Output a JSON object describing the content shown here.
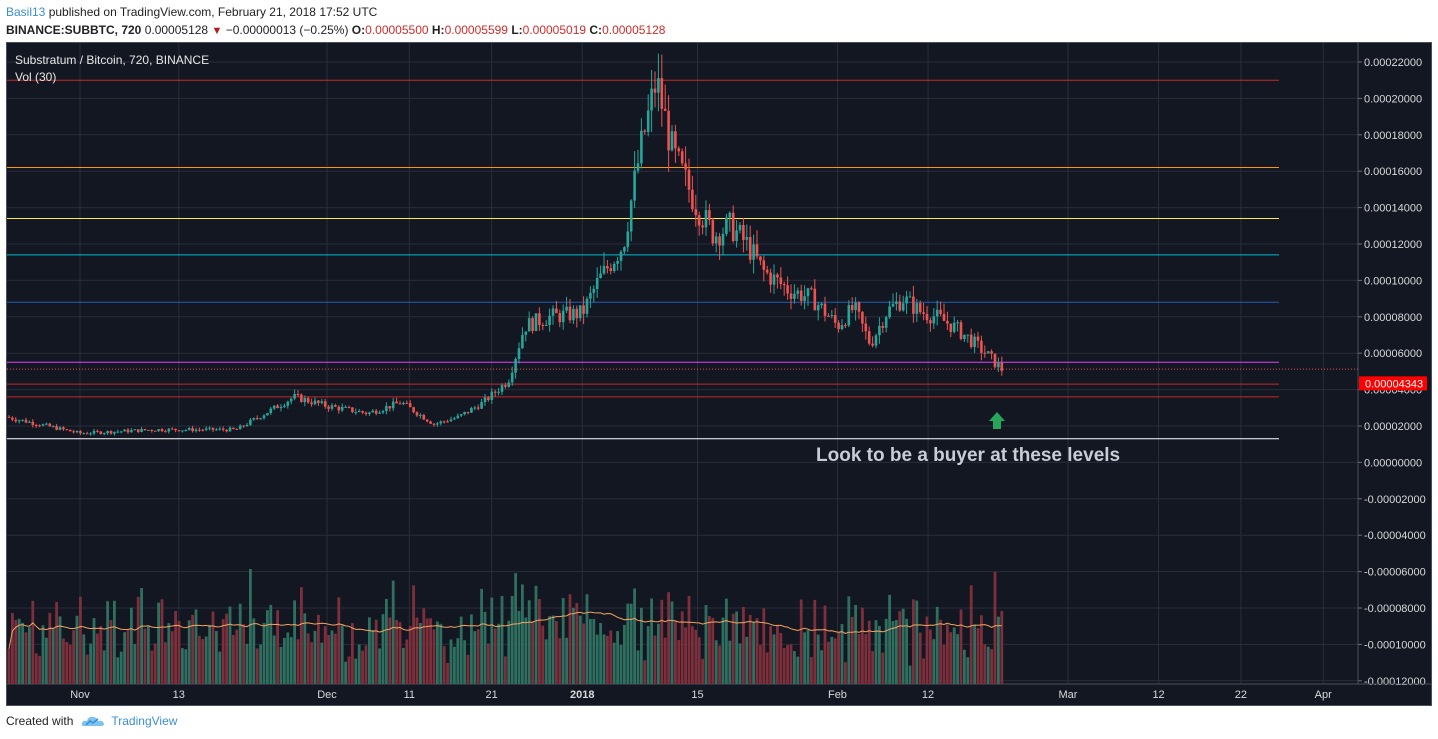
{
  "header": {
    "author": "Basil13",
    "published_text": "published on TradingView.com, February 21, 2018 17:52 UTC",
    "symbol": "BINANCE:SUBBTC, 720",
    "last": "0.00005128",
    "change": "−0.00000013 (−0.25%)",
    "o_label": "O:",
    "o_value": "0.00005500",
    "h_label": "H:",
    "h_value": "0.00005599",
    "l_label": "L:",
    "l_value": "0.00005019",
    "c_label": "C:",
    "c_value": "0.00005128"
  },
  "legend": {
    "title": "Substratum / Bitcoin, 720, BINANCE",
    "volume": "Vol (30)"
  },
  "footer": {
    "created_with": "Created with",
    "brand": "TradingView"
  },
  "colors": {
    "background": "#131722",
    "grid": "#2a2e39",
    "up": "#26a69a",
    "down": "#ef5350",
    "vol_up": "#2e6f5f",
    "vol_down": "#7d2f3b",
    "vol_ma": "#f4a460",
    "text_axis": "#d9d9d9",
    "price_tag": "#ff0000",
    "annotation_arrow": "#26a65b"
  },
  "chart_data": {
    "type": "candlestick",
    "title": "Substratum / Bitcoin, 720, BINANCE",
    "ylim": [
      -0.00013,
      0.00023
    ],
    "y_ticks": [
      "0.00022000",
      "0.00020000",
      "0.00018000",
      "0.00016000",
      "0.00014000",
      "0.00012000",
      "0.00010000",
      "0.00008000",
      "0.00006000",
      "0.00004000",
      "0.00002000",
      "0.00000000",
      "-0.00002000",
      "-0.00004000",
      "-0.00006000",
      "-0.00008000",
      "-0.00010000",
      "-0.00012000"
    ],
    "y_tick_values": [
      0.00022,
      0.0002,
      0.00018,
      0.00016,
      0.00014,
      0.00012,
      0.0001,
      8e-05,
      6e-05,
      4e-05,
      2e-05,
      0,
      -2e-05,
      -4e-05,
      -6e-05,
      -8e-05,
      -0.0001,
      -0.00012
    ],
    "x_ticks": [
      "Nov",
      "13",
      "Dec",
      "11",
      "21",
      "2018",
      "15",
      "Feb",
      "12",
      "Mar",
      "12",
      "22",
      "Apr"
    ],
    "x_tick_dates": [
      "2017-11-01",
      "2017-11-13",
      "2017-12-01",
      "2017-12-11",
      "2017-12-21",
      "2018-01-01",
      "2018-01-15",
      "2018-02-01",
      "2018-02-12",
      "2018-03-01",
      "2018-03-12",
      "2018-03-22",
      "2018-04-01"
    ],
    "current_price_label": "0.00004343",
    "current_price": 4.343e-05,
    "last_close": 5.128e-05,
    "horizontal_levels": [
      {
        "value": 0.00021,
        "color": "#c62828"
      },
      {
        "value": 0.000162,
        "color": "#ff9800"
      },
      {
        "value": 0.000134,
        "color": "#ffeb3b"
      },
      {
        "value": 0.000114,
        "color": "#00bcd4"
      },
      {
        "value": 8.8e-05,
        "color": "#1e5fb4"
      },
      {
        "value": 5.5e-05,
        "color": "#e040fb"
      },
      {
        "value": 4.3e-05,
        "color": "#c62828"
      },
      {
        "value": 3.6e-05,
        "color": "#c62828"
      },
      {
        "value": 1.3e-05,
        "color": "#ffffff"
      }
    ],
    "annotation": {
      "text": "Look to be a buyer at these levels"
    },
    "price_series": {
      "dates": [
        "2017-10-23",
        "2017-11-01",
        "2017-11-10",
        "2017-11-20",
        "2017-11-27",
        "2017-12-01",
        "2017-12-06",
        "2017-12-10",
        "2017-12-14",
        "2017-12-17",
        "2017-12-20",
        "2017-12-23",
        "2017-12-25",
        "2017-12-28",
        "2018-01-01",
        "2018-01-03",
        "2018-01-06",
        "2018-01-08",
        "2018-01-10",
        "2018-01-12",
        "2018-01-15",
        "2018-01-17",
        "2018-01-19",
        "2018-01-21",
        "2018-01-23",
        "2018-01-26",
        "2018-01-29",
        "2018-02-01",
        "2018-02-03",
        "2018-02-05",
        "2018-02-07",
        "2018-02-09",
        "2018-02-11",
        "2018-02-13",
        "2018-02-15",
        "2018-02-17",
        "2018-02-19",
        "2018-02-21"
      ],
      "closes": [
        2.5e-05,
        1.6e-05,
        1.8e-05,
        1.8e-05,
        3.6e-05,
        3.1e-05,
        2.7e-05,
        3.3e-05,
        2.1e-05,
        2.5e-05,
        3.3e-05,
        4.5e-05,
        7.5e-05,
        8e-05,
        8.2e-05,
        0.0001,
        0.00012,
        0.00017,
        0.00021,
        0.00017,
        0.00014,
        0.000125,
        0.00013,
        0.00012,
        0.000105,
        9.5e-05,
        9e-05,
        7.5e-05,
        8.5e-05,
        6.5e-05,
        8.3e-05,
        9e-05,
        8.3e-05,
        8e-05,
        7.5e-05,
        6.8e-05,
        6e-05,
        5.1e-05
      ]
    },
    "volume_ma_note": "Vol (30)"
  }
}
